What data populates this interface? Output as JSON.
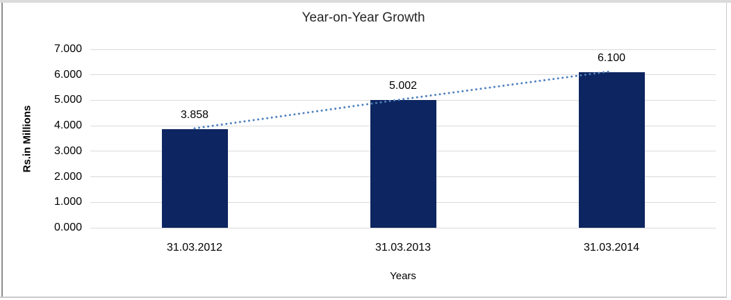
{
  "window": {
    "background": "#ffffff"
  },
  "chart_data": {
    "type": "bar",
    "title": "Year-on-Year Growth",
    "xlabel": "Years",
    "ylabel": "Rs.in Millions",
    "categories": [
      "31.03.2012",
      "31.03.2013",
      "31.03.2014"
    ],
    "values": [
      3.858,
      5.002,
      6.1
    ],
    "data_labels": [
      "3.858",
      "5.002",
      "6.100"
    ],
    "ylim": [
      0,
      7
    ],
    "ytick_step": 1,
    "ytick_labels": [
      "0.000",
      "1.000",
      "2.000",
      "3.000",
      "4.000",
      "5.000",
      "6.000",
      "7.000"
    ],
    "grid": true,
    "legend_position": "none",
    "bar_color": "#0d2560",
    "gridline_color": "#d9d9d9",
    "trendline": {
      "style": "dotted",
      "color": "#4f81bd"
    }
  }
}
